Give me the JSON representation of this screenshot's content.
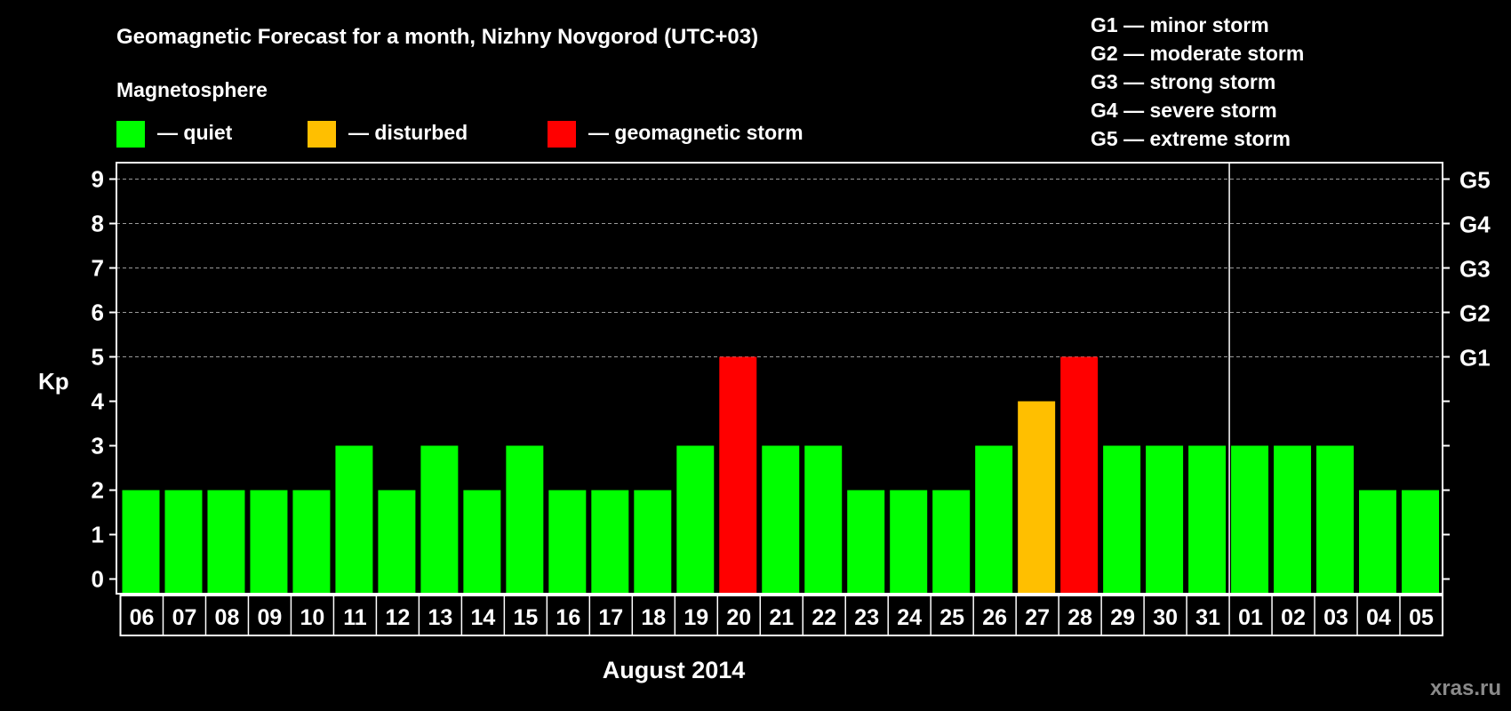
{
  "chart_data": {
    "type": "bar",
    "title": "Geomagnetic Forecast for a month, Nizhny Novgorod (UTC+03)",
    "xlabel": "August 2014",
    "ylabel": "Kp",
    "ylim": [
      0,
      9
    ],
    "yticks": [
      "0",
      "1",
      "2",
      "3",
      "4",
      "5",
      "6",
      "7",
      "8",
      "9"
    ],
    "right_ticks": [
      {
        "kp": 5,
        "label": "G1"
      },
      {
        "kp": 6,
        "label": "G2"
      },
      {
        "kp": 7,
        "label": "G3"
      },
      {
        "kp": 8,
        "label": "G4"
      },
      {
        "kp": 9,
        "label": "G5"
      }
    ],
    "categories": [
      "06",
      "07",
      "08",
      "09",
      "10",
      "11",
      "12",
      "13",
      "14",
      "15",
      "16",
      "17",
      "18",
      "19",
      "20",
      "21",
      "22",
      "23",
      "24",
      "25",
      "26",
      "27",
      "28",
      "29",
      "30",
      "31",
      "01",
      "02",
      "03",
      "04",
      "05"
    ],
    "values": [
      2,
      2,
      2,
      2,
      2,
      3,
      2,
      3,
      2,
      3,
      2,
      2,
      2,
      3,
      5,
      3,
      3,
      2,
      2,
      2,
      3,
      4,
      5,
      3,
      3,
      3,
      3,
      3,
      3,
      2,
      2
    ],
    "month_break_after": "31",
    "grid": "dashed at 5-9",
    "legend_title": "Magnetosphere",
    "legend": [
      {
        "label": "— quiet",
        "color": "#00ff00"
      },
      {
        "label": "— disturbed",
        "color": "#ffbf00"
      },
      {
        "label": "— geomagnetic storm",
        "color": "#ff0000"
      }
    ],
    "storm_scale": [
      "G1 — minor storm",
      "G2 — moderate storm",
      "G3 — strong storm",
      "G4 — severe storm",
      "G5 — extreme storm"
    ]
  },
  "watermark": "xras.ru"
}
